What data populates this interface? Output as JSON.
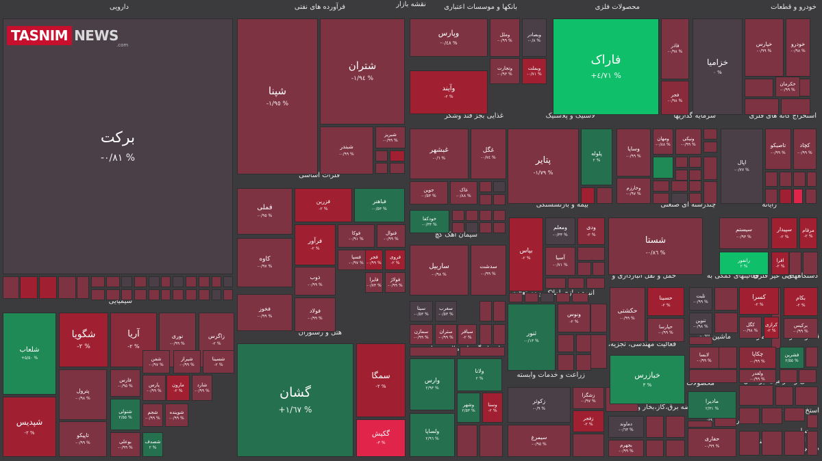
{
  "page_title": "نقشه بازار",
  "logo": {
    "primary": "TASNIM",
    "secondary": "NEWS",
    "suffix": ".com"
  },
  "colors": {
    "neutral": "#4a3f47",
    "red_light": "#7e3343",
    "red_mid": "#8a2b3c",
    "red_strong": "#a02031",
    "red_bright": "#e0244a",
    "green_dark": "#25704f",
    "green_mid": "#1f8a55",
    "green_bright": "#0fbf6a",
    "background": "#3b3b3d"
  },
  "chart_data": {
    "type": "heatmap",
    "title": "نقشه بازار",
    "sectors": [
      "دارویی",
      "فرآورده های نفتی",
      "بانکها و موسسات اعتباری",
      "محصولات فلزی",
      "خودرو و قطعات",
      "غذایی بجز قند وشکر",
      "لاستیک و پلاستیک",
      "سرمایه گذاریها",
      "استخراج کانه های فلزی",
      "فلزات اساسی",
      "بیمه و بازنشستگی",
      "چندرشته ای صنعتی",
      "رایانه",
      "سیمان آهک گچ",
      "حمل و نقل انبارداری و",
      "فعالیتهای کمکی به",
      "کانی غیر فلزی",
      "دستگاههای",
      "انبوه سازی املاک و مستغلات",
      "شیمیایی",
      "هتل و رستوران",
      "واسطه گریهای مالی و پولی",
      "زراعت و خدمات وابسته",
      "فعالیت مهندسی، تجزیه،",
      "ماشین آلات و",
      "محصولات",
      "قند و شکر",
      "کاشی و سرامیک",
      "سایر حمل",
      "عرضه برق،گاز،بخار و آب گرم",
      "استخراج نفت گاز",
      "فنی و",
      "محصولات",
      "استخ محصر خرده",
      "سایر",
      "اطلا",
      "مخابرات",
      "مشو"
    ],
    "stocks": [
      {
        "name": "برکت",
        "change": "-٠/٨١ %"
      },
      {
        "name": "شپنا",
        "change": "-١/٩٥ %"
      },
      {
        "name": "شتران",
        "change": "-١/٩٤ %"
      },
      {
        "name": "شبندر",
        "change": "-٠/٩٩ %"
      },
      {
        "name": "شبریز",
        "change": "-٠/٩٩ %"
      },
      {
        "name": "وپارس",
        "change": "-٠/٤٨ %"
      },
      {
        "name": "وملل",
        "change": "-٠/٩٩ %"
      },
      {
        "name": "وبصادر",
        "change": "-٠/٨ %"
      },
      {
        "name": "وتجارت",
        "change": "-٠/٩٣ %"
      },
      {
        "name": "وبملت",
        "change": "-٠/٧١ %"
      },
      {
        "name": "وآیند",
        "change": "-٢ %"
      },
      {
        "name": "فاراک",
        "change": "+٤/٧١ %"
      },
      {
        "name": "فاذر",
        "change": "-٠/٩٨ %"
      },
      {
        "name": "فجر",
        "change": "-٠/٩٨ %"
      },
      {
        "name": "خزامیا",
        "change": "٠ %"
      },
      {
        "name": "خپارس",
        "change": "-٠/٩٩ %"
      },
      {
        "name": "خودرو",
        "change": "-٠/٩٨ %"
      },
      {
        "name": "خکرمان",
        "change": "-٠/٩٩ %"
      },
      {
        "name": "غبشهر",
        "change": "-٠/٦ %"
      },
      {
        "name": "غگل",
        "change": "-٠/٧٤ %"
      },
      {
        "name": "غاک",
        "change": "-٠/٨٨ %"
      },
      {
        "name": "جوین",
        "change": "-٠/٥٣ %"
      },
      {
        "name": "خودکفا",
        "change": "-٠/٣٣ %"
      },
      {
        "name": "پتایر",
        "change": "-١/٧٩ %"
      },
      {
        "name": "پلوله",
        "change": "٢ %"
      },
      {
        "name": "وساپا",
        "change": "-٠/٩٩ %"
      },
      {
        "name": "ومهان",
        "change": "-٠/٨٨ %"
      },
      {
        "name": "ونیکی",
        "change": "-٠/٩٩ %"
      },
      {
        "name": "وخارزم",
        "change": "-٠/٩٧ %"
      },
      {
        "name": "تاصیکو",
        "change": "-٠/٩٩ %"
      },
      {
        "name": "کچاد",
        "change": "-٠/٩٩ %"
      },
      {
        "name": "اپال",
        "change": "-٠/٧٧ %"
      },
      {
        "name": "فملی",
        "change": "-٠/٩٥ %"
      },
      {
        "name": "فزرین",
        "change": "-٢ %"
      },
      {
        "name": "فباهنر",
        "change": "-٠/٥٣ %"
      },
      {
        "name": "فولاد",
        "change": "-٠/٩٤ %"
      },
      {
        "name": "کاوه",
        "change": "-٠/٩٧ %"
      },
      {
        "name": "فخوز",
        "change": "-٠/٩٩ %"
      },
      {
        "name": "فرآور",
        "change": "-٢ %"
      },
      {
        "name": "فوکا",
        "change": "-٠/٩١ %"
      },
      {
        "name": "فنوال",
        "change": "-٠/٩٩ %"
      },
      {
        "name": "فسپا",
        "change": "-٠/٩٧ %"
      },
      {
        "name": "فجر",
        "change": "-٠/٩٩ %"
      },
      {
        "name": "فروی",
        "change": "-٢ %"
      },
      {
        "name": "ذوب",
        "change": "-٠/٩٩ %"
      },
      {
        "name": "فایرا",
        "change": "-٠/٧٣ %"
      },
      {
        "name": "فولاژ",
        "change": "-٠/٩٩ %"
      },
      {
        "name": "فولاد",
        "change": "-٠/٩٩ %"
      },
      {
        "name": "وبیمه",
        "change": "-٠/٩٨ %"
      },
      {
        "name": "ومعلم",
        "change": "-٠/٣٣ %"
      },
      {
        "name": "ودی",
        "change": "-٢ %"
      },
      {
        "name": "بپاس",
        "change": "-٢ %"
      },
      {
        "name": "آسیا",
        "change": "-٠/٧١ %"
      },
      {
        "name": "شستا",
        "change": "-٠/٨٦ %"
      },
      {
        "name": "سیستم",
        "change": "-٠/٩٣ %"
      },
      {
        "name": "سپیدار",
        "change": "-٢ %"
      },
      {
        "name": "مرقام",
        "change": "-٢ %"
      },
      {
        "name": "رانفور",
        "change": "٢ %"
      },
      {
        "name": "افرا",
        "change": "-٢ %"
      },
      {
        "name": "سار",
        "change": "-٠/٩٩ %"
      },
      {
        "name": "سربیل",
        "change": "-٠/٩٨ %"
      },
      {
        "name": "سدشت",
        "change": "-٠/٩٩ %"
      },
      {
        "name": "سیتا",
        "change": "-٠/٥٣ %"
      },
      {
        "name": "سغرب",
        "change": "-٠/٥٣ %"
      },
      {
        "name": "سمازن",
        "change": "-٠/٩٩ %"
      },
      {
        "name": "ساربیل",
        "change": "-٠/٩٨ %"
      },
      {
        "name": "سباقر",
        "change": "-٢ %"
      },
      {
        "name": "ستران",
        "change": "-٠/٩٩ %"
      },
      {
        "name": "حکشتی",
        "change": "-٠/٩٩ %"
      },
      {
        "name": "حسینا",
        "change": "-٢ %"
      },
      {
        "name": "حپارسا",
        "change": "-٠/٩٩ %"
      },
      {
        "name": "تلیسه",
        "change": "-٠/٨٨ %"
      },
      {
        "name": "تلبت",
        "change": "-٠/٩٩ %"
      },
      {
        "name": "تنوین",
        "change": "-٠/٩٨ %"
      },
      {
        "name": "کسرا",
        "change": "-٢ %"
      },
      {
        "name": "کگل",
        "change": "-٠/٩٨ %"
      },
      {
        "name": "کرازی",
        "change": "-٢ %"
      },
      {
        "name": "بکام",
        "change": "-٢ %"
      },
      {
        "name": "برکیس",
        "change": "-٠/٩٩ %"
      },
      {
        "name": "ثنور",
        "change": "-٠/١٣ %"
      },
      {
        "name": "ونوس",
        "change": "-٢ %"
      },
      {
        "name": "شگویا",
        "change": "-٢ %"
      },
      {
        "name": "آریا",
        "change": "-٢ %"
      },
      {
        "name": "نوری",
        "change": "-٠/٩٩ %"
      },
      {
        "name": "زاگرس",
        "change": "-٢ %"
      },
      {
        "name": "شلعاب",
        "change": "+٥/٥٠ %"
      },
      {
        "name": "شپدیس",
        "change": "-٢ %"
      },
      {
        "name": "پترول",
        "change": "-٠/٩٨ %"
      },
      {
        "name": "فارس",
        "change": "-٠/٩٥ %"
      },
      {
        "name": "شفن",
        "change": "-٠/٩٧ %"
      },
      {
        "name": "شیراز",
        "change": "-٠/٩٩ %"
      },
      {
        "name": "شسینا",
        "change": "-٢ %"
      },
      {
        "name": "پارس",
        "change": "-٠/٩٩ %"
      },
      {
        "name": "مارون",
        "change": "-٢ %"
      },
      {
        "name": "شارد",
        "change": "-٠/٩٩ %"
      },
      {
        "name": "تاپیکو",
        "change": "-٠/٩٩ %"
      },
      {
        "name": "شتولی",
        "change": "٢/٥٥ %"
      },
      {
        "name": "شجم",
        "change": "-٠/٩٩ %"
      },
      {
        "name": "شوینده",
        "change": "-٠/٩٩ %"
      },
      {
        "name": "بوعلی",
        "change": "-٠/٩٩ %"
      },
      {
        "name": "شصدف",
        "change": "٢ %"
      },
      {
        "name": "گشان",
        "change": "+١/٦٧ %"
      },
      {
        "name": "سمگا",
        "change": "-٢ %"
      },
      {
        "name": "گکیش",
        "change": "-٣ %"
      },
      {
        "name": "وارس",
        "change": "٢/٩٣ %"
      },
      {
        "name": "ولانا",
        "change": "٢ %"
      },
      {
        "name": "وشهر",
        "change": "٢/٥٣ %"
      },
      {
        "name": "وسنا",
        "change": "-٢ %"
      },
      {
        "name": "ولساپا",
        "change": "٢/٩٦ %"
      },
      {
        "name": "زکوثر",
        "change": "-٠/٩ %"
      },
      {
        "name": "زشگزا",
        "change": "-٠/٩٧ %"
      },
      {
        "name": "زفجر",
        "change": "-٢ %"
      },
      {
        "name": "سیمرغ",
        "change": "-٠/٩٥ %"
      },
      {
        "name": "خبازرس",
        "change": "٣ %"
      },
      {
        "name": "دماوند",
        "change": "-٠/٦٣ %"
      },
      {
        "name": "بجهرم",
        "change": "-٠/٩٩ %"
      },
      {
        "name": "مادیرا",
        "change": "٢/٣١ %"
      },
      {
        "name": "حفاری",
        "change": "-٠/٩٩ %"
      },
      {
        "name": "چکاپا",
        "change": "-٠/٩٩ %"
      },
      {
        "name": "فشرین",
        "change": "٢/٥٥ %"
      },
      {
        "name": "لابسا",
        "change": "-٠/٩٩ %"
      },
      {
        "name": "ولغدر",
        "change": "-٠/٩٩ %"
      }
    ]
  }
}
